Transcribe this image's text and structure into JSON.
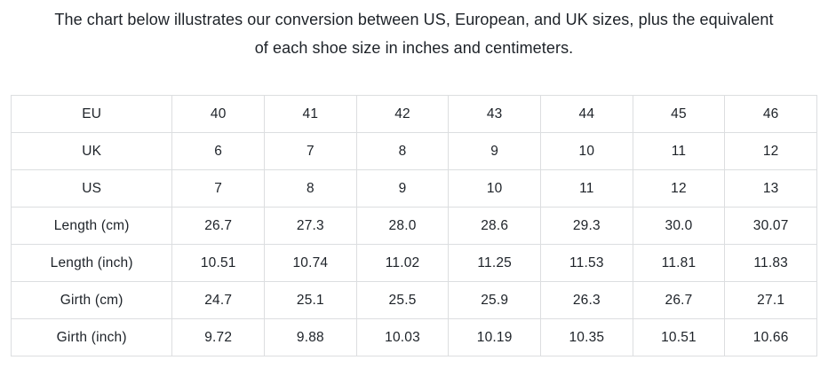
{
  "page": {
    "title_line1": "The chart below illustrates our conversion between US, European, and UK sizes, plus the equivalent",
    "title_line2": "of each shoe size in inches and centimeters."
  },
  "colors": {
    "text": "#1d2228",
    "table_border": "#dcdee0",
    "background": "#ffffff"
  },
  "chart_data": {
    "type": "table",
    "title": "Shoe size conversion chart",
    "columns_per_row": 7,
    "rows": [
      {
        "label": "EU",
        "values": [
          "40",
          "41",
          "42",
          "43",
          "44",
          "45",
          "46"
        ]
      },
      {
        "label": "UK",
        "values": [
          "6",
          "7",
          "8",
          "9",
          "10",
          "11",
          "12"
        ]
      },
      {
        "label": "US",
        "values": [
          "7",
          "8",
          "9",
          "10",
          "11",
          "12",
          "13"
        ]
      },
      {
        "label": "Length (cm)",
        "values": [
          "26.7",
          "27.3",
          "28.0",
          "28.6",
          "29.3",
          "30.0",
          "30.07"
        ]
      },
      {
        "label": "Length (inch)",
        "values": [
          "10.51",
          "10.74",
          "11.02",
          "11.25",
          "11.53",
          "11.81",
          "11.83"
        ]
      },
      {
        "label": "Girth (cm)",
        "values": [
          "24.7",
          "25.1",
          "25.5",
          "25.9",
          "26.3",
          "26.7",
          "27.1"
        ]
      },
      {
        "label": "Girth (inch)",
        "values": [
          "9.72",
          "9.88",
          "10.03",
          "10.19",
          "10.35",
          "10.51",
          "10.66"
        ]
      }
    ]
  }
}
